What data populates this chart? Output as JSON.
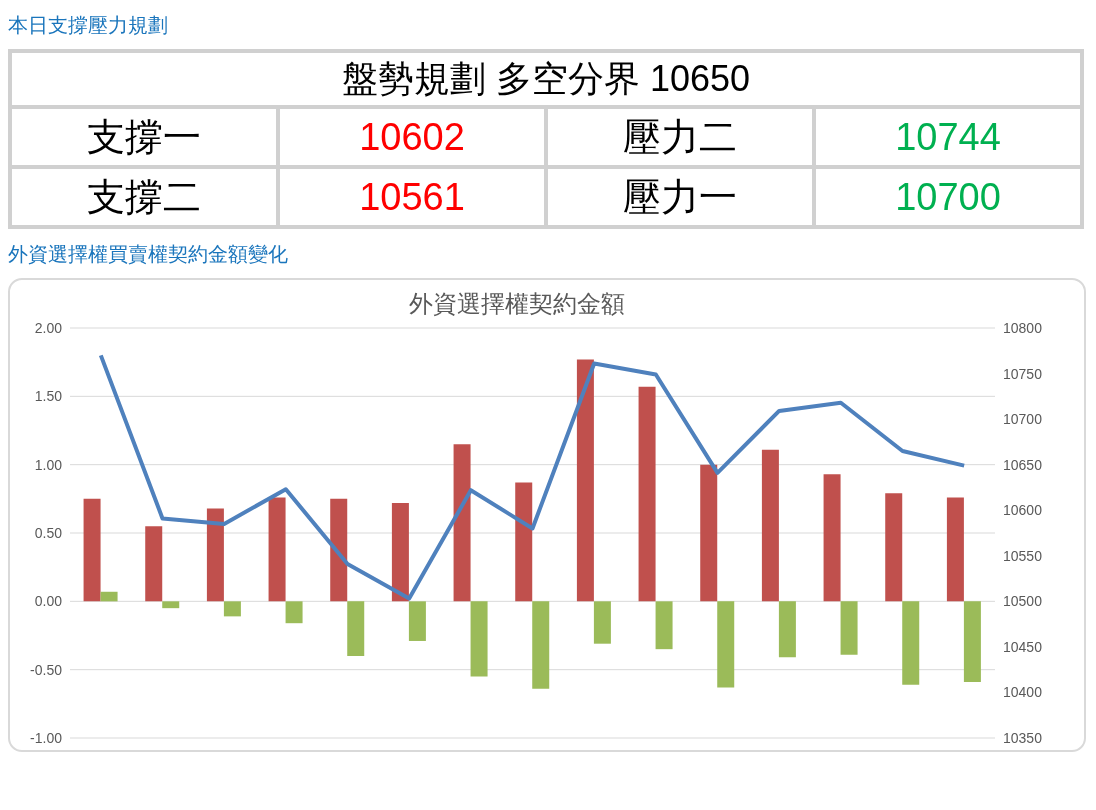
{
  "chart_data": [
    {
      "type": "other",
      "title": "本日支撐壓力規劃",
      "annotations": [
        "盤勢規劃 多空分界 10650",
        "支撐一",
        "10602",
        "壓力二",
        "10744",
        "支撐二",
        "10561",
        "壓力一",
        "10700"
      ]
    },
    {
      "type": "bar",
      "title": "外資選擇權買賣權契約金額變化",
      "subtitle": "外資選擇權契約金額",
      "categories": [
        null,
        null,
        null,
        null,
        null,
        null,
        null,
        null,
        null,
        null,
        null,
        null,
        null,
        null,
        null
      ],
      "series": [
        {
          "color": "#c0504d",
          "values": [
            0.75,
            0.55,
            0.68,
            0.76,
            0.75,
            0.72,
            1.15,
            0.87,
            1.77,
            1.57,
            1.0,
            1.11,
            0.93,
            0.79,
            0.76
          ]
        },
        {
          "color": "#9bbb59",
          "values": [
            0.07,
            -0.05,
            -0.11,
            -0.16,
            -0.4,
            -0.29,
            -0.55,
            -0.64,
            -0.31,
            -0.35,
            -0.63,
            -0.41,
            -0.39,
            -0.61,
            -0.59
          ]
        },
        {
          "type": "line",
          "axis": "y2",
          "color": "#4f81bd",
          "values": [
            10770,
            10591,
            10585,
            10623,
            10541,
            10503,
            10622,
            10580,
            10761,
            10749,
            10641,
            10709,
            10718,
            10665,
            10649
          ]
        }
      ],
      "ylim": [
        -1,
        2
      ],
      "yticks": [
        {
          "value": -1,
          "label": "-1.00"
        },
        {
          "value": -0.5,
          "label": "-0.50"
        },
        {
          "value": 0,
          "label": "0.00"
        },
        {
          "value": 0.5,
          "label": "0.50"
        },
        {
          "value": 1,
          "label": "1.00"
        },
        {
          "value": 1.5,
          "label": "1.50"
        },
        {
          "value": 2,
          "label": "2.00"
        }
      ],
      "y2lim": [
        10350,
        10800
      ],
      "y2ticks": [
        10350,
        10400,
        10450,
        10500,
        10550,
        10600,
        10650,
        10700,
        10750,
        10800
      ],
      "grid": "y",
      "legend": false,
      "marker": "none",
      "tick_labels": "y"
    }
  ]
}
